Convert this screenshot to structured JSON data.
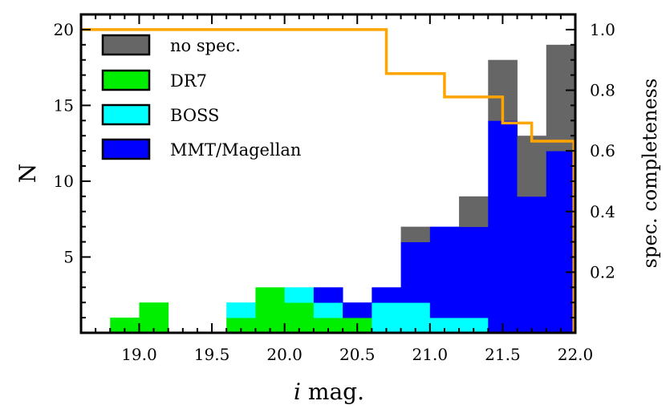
{
  "chart_data": {
    "type": "bar",
    "stacked": true,
    "xlabel_italic": "i",
    "xlabel_rest": " mag.",
    "ylabel": "N",
    "y2label": "spec. completeness",
    "xlim": [
      18.6,
      22.0
    ],
    "ylim": [
      0,
      21
    ],
    "y2lim": [
      0,
      1.05
    ],
    "xticks": [
      "19.0",
      "19.5",
      "20.0",
      "20.5",
      "21.0",
      "21.5",
      "22.0"
    ],
    "xtick_values": [
      19.0,
      19.5,
      20.0,
      20.5,
      21.0,
      21.5,
      22.0
    ],
    "yticks": [
      "5",
      "10",
      "15",
      "20"
    ],
    "ytick_values": [
      5,
      10,
      15,
      20
    ],
    "y2ticks": [
      "0.2",
      "0.4",
      "0.6",
      "0.8",
      "1.0"
    ],
    "y2tick_values": [
      0.2,
      0.4,
      0.6,
      0.8,
      1.0
    ],
    "bin_width": 0.2,
    "bin_starts": [
      18.8,
      19.0,
      19.6,
      19.8,
      20.0,
      20.2,
      20.4,
      20.6,
      20.8,
      21.0,
      21.2,
      21.4,
      21.6,
      21.8
    ],
    "series": [
      {
        "name": "DR7",
        "color": "#00ee00",
        "values": [
          1,
          2,
          1,
          3,
          2,
          1,
          1,
          0,
          0,
          0,
          0,
          0,
          0,
          0
        ]
      },
      {
        "name": "BOSS",
        "color": "#00ffff",
        "values": [
          0,
          0,
          1,
          0,
          1,
          1,
          0,
          2,
          2,
          1,
          1,
          0,
          0,
          0
        ]
      },
      {
        "name": "MMT/Magellan",
        "color": "#0000ff",
        "values": [
          0,
          0,
          0,
          0,
          0,
          1,
          1,
          1,
          4,
          6,
          6,
          14,
          9,
          12
        ]
      },
      {
        "name": "no spec.",
        "color": "#666666",
        "values": [
          0,
          0,
          0,
          0,
          0,
          0,
          0,
          0,
          1,
          0,
          2,
          4,
          4,
          7
        ]
      }
    ],
    "legend_order": [
      "no spec.",
      "DR7",
      "BOSS",
      "MMT/Magellan"
    ],
    "legend_position": "top-left",
    "completeness_line": {
      "color": "#ffa500",
      "x": [
        18.6,
        20.7,
        20.7,
        21.1,
        21.1,
        21.5,
        21.5,
        21.7,
        21.7,
        21.99,
        21.99
      ],
      "y": [
        1.0,
        1.0,
        0.855,
        0.855,
        0.778,
        0.778,
        0.692,
        0.692,
        0.632,
        0.632,
        0.0
      ]
    }
  }
}
